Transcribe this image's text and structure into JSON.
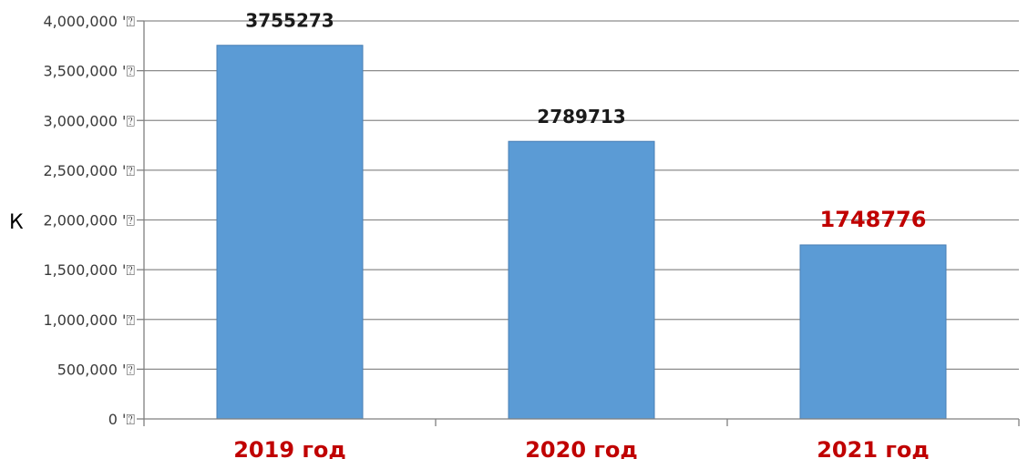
{
  "chart_data": {
    "type": "bar",
    "title": "",
    "xlabel": "",
    "ylabel": "К",
    "categories": [
      "2019 год",
      "2020 год",
      "2021 год"
    ],
    "values": [
      3755273,
      2789713,
      1748776
    ],
    "data_labels": [
      "3755273",
      "2789713",
      "1748776"
    ],
    "ylim": [
      0,
      4000000
    ],
    "y_ticks": [
      0,
      500000,
      1000000,
      1500000,
      2000000,
      2500000,
      3000000,
      3500000,
      4000000
    ],
    "y_tick_labels": [
      "0 '⍰",
      "500,000 '⍰",
      "1,000,000 '⍰",
      "1,500,000 '⍰",
      "2,000,000 '⍰",
      "2,500,000 '⍰",
      "3,000,000 '⍰",
      "3,500,000 '⍰",
      "4,000,000 '⍰"
    ],
    "grid": true,
    "legend": "none",
    "bar_color": "#5b9bd5",
    "category_label_color": "#c00000",
    "data_label_color": "#1a1a1a",
    "highlight_index": 2,
    "highlight_color": "#c00000"
  }
}
